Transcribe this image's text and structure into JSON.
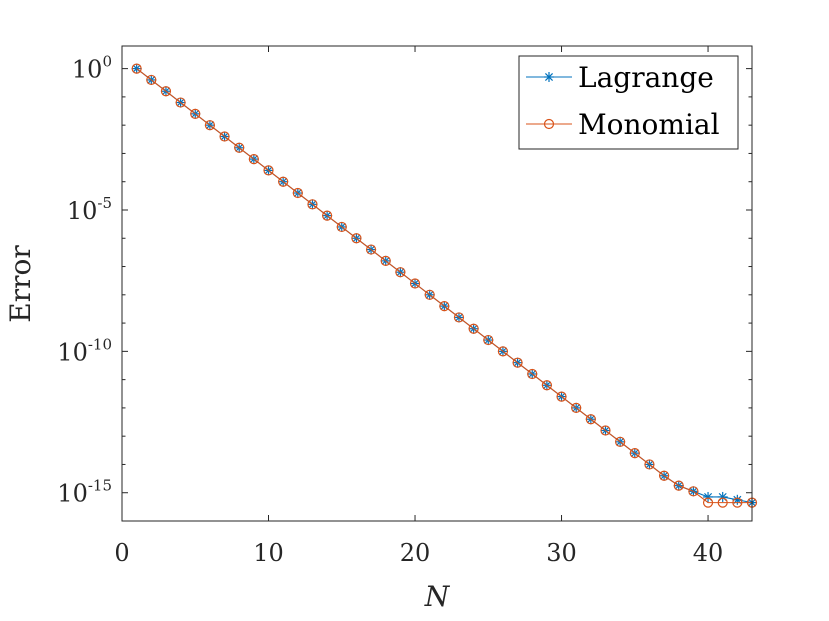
{
  "chart_data": {
    "type": "line",
    "title": "",
    "xlabel": "N",
    "ylabel": "Error",
    "xlim": [
      0,
      43
    ],
    "ylim_log10": [
      -16,
      0.8
    ],
    "yscale": "log",
    "grid": false,
    "legend_position": "top-right",
    "x_ticks": [
      0,
      10,
      20,
      30,
      40
    ],
    "x_tick_labels": [
      "0",
      "10",
      "20",
      "30",
      "40"
    ],
    "y_ticks_log10": [
      0,
      -5,
      -10,
      -15
    ],
    "y_tick_base": "10",
    "y_tick_exponents": [
      "0",
      "-5",
      "-10",
      "-15"
    ],
    "x": [
      1,
      2,
      3,
      4,
      5,
      6,
      7,
      8,
      9,
      10,
      11,
      12,
      13,
      14,
      15,
      16,
      17,
      18,
      19,
      20,
      21,
      22,
      23,
      24,
      25,
      26,
      27,
      28,
      29,
      30,
      31,
      32,
      33,
      34,
      35,
      36,
      37,
      38,
      39,
      40,
      41,
      42,
      43
    ],
    "series": [
      {
        "name": "Lagrange",
        "color": "#0072BD",
        "marker": "asterisk",
        "log10_values": [
          0,
          -0.4,
          -0.8,
          -1.2,
          -1.6,
          -2.0,
          -2.4,
          -2.8,
          -3.2,
          -3.6,
          -4.0,
          -4.4,
          -4.8,
          -5.2,
          -5.6,
          -6.0,
          -6.4,
          -6.8,
          -7.2,
          -7.6,
          -8.0,
          -8.4,
          -8.8,
          -9.2,
          -9.6,
          -10.0,
          -10.4,
          -10.8,
          -11.2,
          -11.6,
          -12.0,
          -12.4,
          -12.8,
          -13.2,
          -13.6,
          -14.0,
          -14.4,
          -14.75,
          -14.95,
          -15.15,
          -15.15,
          -15.25,
          -15.35
        ]
      },
      {
        "name": "Monomial",
        "color": "#D95319",
        "marker": "circle",
        "log10_values": [
          0,
          -0.4,
          -0.8,
          -1.2,
          -1.6,
          -2.0,
          -2.4,
          -2.8,
          -3.2,
          -3.6,
          -4.0,
          -4.4,
          -4.8,
          -5.2,
          -5.6,
          -6.0,
          -6.4,
          -6.8,
          -7.2,
          -7.6,
          -8.0,
          -8.4,
          -8.8,
          -9.2,
          -9.6,
          -10.0,
          -10.4,
          -10.8,
          -11.2,
          -11.6,
          -12.0,
          -12.4,
          -12.8,
          -13.2,
          -13.6,
          -14.0,
          -14.4,
          -14.75,
          -14.95,
          -15.35,
          -15.35,
          -15.35,
          -15.35
        ]
      }
    ]
  }
}
